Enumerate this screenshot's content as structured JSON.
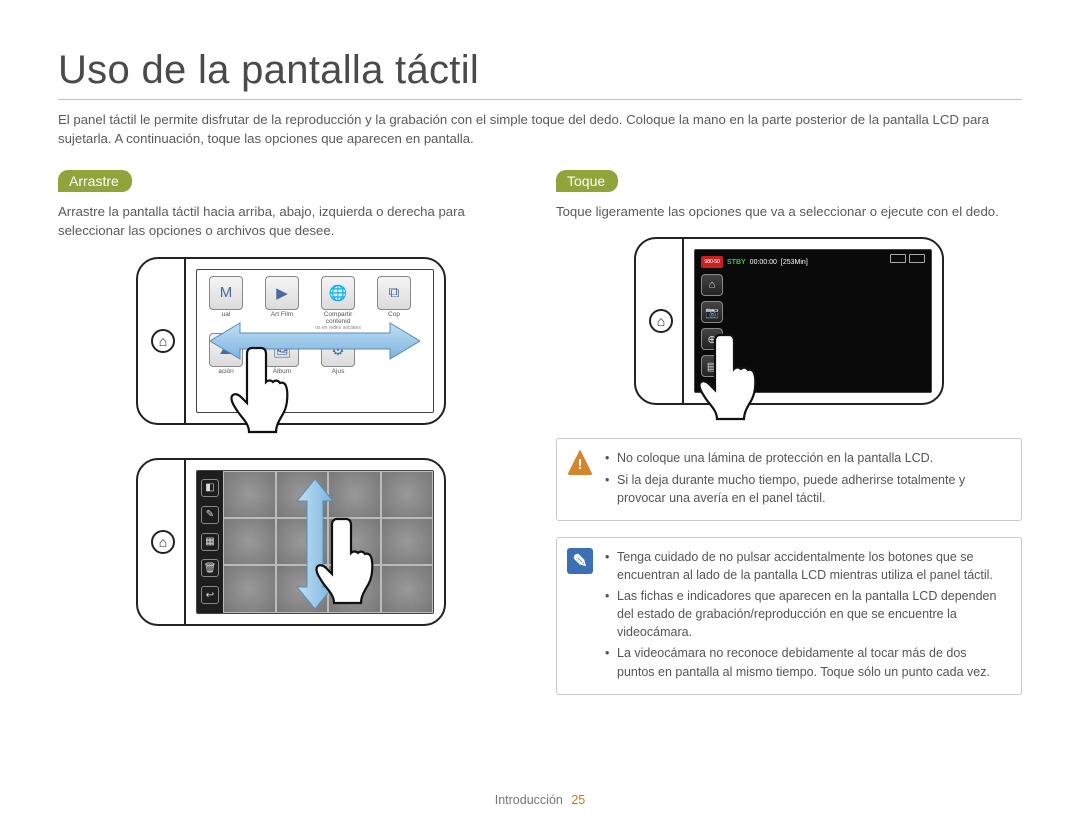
{
  "page": {
    "title": "Uso de la pantalla táctil",
    "intro": "El panel táctil le permite disfrutar de la reproducción y la grabación con el simple toque del dedo. Coloque la mano en la parte posterior de la pantalla LCD para sujetarla. A continuación, toque las opciones que aparecen en pantalla.",
    "footer_section": "Introducción",
    "footer_page": "25"
  },
  "drag": {
    "heading": "Arrastre",
    "desc": "Arrastre la pantalla táctil hacia arriba, abajo, izquierda o derecha para seleccionar las opciones o archivos que desee.",
    "grid_items": [
      {
        "icon": "M",
        "label": "ual"
      },
      {
        "icon": "▶",
        "label": "Art Film"
      },
      {
        "icon": "🌐",
        "label": "Compartir contenid"
      },
      {
        "icon": "⧉",
        "label": "Cop"
      },
      {
        "icon": "⛰",
        "label": "ación"
      },
      {
        "icon": "🖼",
        "label": "Álbum"
      },
      {
        "icon": "⚙",
        "label": "Ajus"
      }
    ],
    "subcaption": "os en redes sociales",
    "thumb_side_icons": [
      "◧",
      "✎",
      "▦",
      "🗑",
      "↩"
    ]
  },
  "tap": {
    "heading": "Toque",
    "desc": "Toque ligeramente las opciones que va a seleccionar o ejecute con el dedo.",
    "rec": {
      "badge": "980·50",
      "stby": "STBY",
      "time": "00:00:00",
      "remain": "[253Min]"
    },
    "side_icons": [
      "⌂",
      "📷",
      "⊕",
      "▤"
    ]
  },
  "warning": {
    "items": [
      "No coloque una lámina de protección en la pantalla LCD.",
      "Si la deja durante mucho tiempo, puede adherirse totalmente y provocar una avería en el panel táctil."
    ]
  },
  "note": {
    "items": [
      "Tenga cuidado de no pulsar accidentalmente los botones que se encuentran al lado de la pantalla LCD mientras utiliza el panel táctil.",
      "Las fichas e indicadores que aparecen en la pantalla LCD dependen del estado de grabación/reproducción en que se encuentre la videocámara.",
      "La videocámara no reconoce debidamente al tocar más de dos puntos en pantalla al mismo tiempo. Toque sólo un punto cada vez."
    ]
  },
  "colors": {
    "pill_bg": "#8fa43a",
    "warn_bg": "#d6842e",
    "note_bg": "#3c70b6",
    "stby": "#3cc24a",
    "page_num": "#c87a1c",
    "arrow_fill": "#9cc6e8"
  }
}
